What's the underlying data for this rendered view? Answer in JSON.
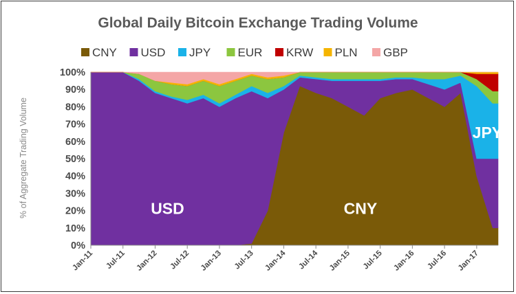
{
  "chart_data": {
    "type": "area",
    "stacked": true,
    "percent": true,
    "title": "Global Daily Bitcoin Exchange Trading Volume",
    "ylabel": "% of Aggregate Trading Volume",
    "xlabel": "",
    "ylim": [
      0,
      100
    ],
    "y_tick_labels": [
      "0%",
      "10%",
      "20%",
      "30%",
      "40%",
      "50%",
      "60%",
      "70%",
      "80%",
      "90%",
      "100%"
    ],
    "x_tick_labels": [
      "Jan-11",
      "Jul-11",
      "Jan-12",
      "Jul-12",
      "Jan-13",
      "Jul-13",
      "Jan-14",
      "Jul-14",
      "Jan-15",
      "Jul-15",
      "Jan-16",
      "Jul-16",
      "Jan-17"
    ],
    "legend_position": "top",
    "grid": false,
    "x": [
      "Jan-11",
      "Jul-11",
      "Oct-11",
      "Jan-12",
      "Apr-12",
      "Jul-12",
      "Oct-12",
      "Jan-13",
      "Apr-13",
      "Jul-13",
      "Oct-13",
      "Jan-14",
      "Apr-14",
      "Jul-14",
      "Oct-14",
      "Jan-15",
      "Apr-15",
      "Jul-15",
      "Oct-15",
      "Jan-16",
      "Apr-16",
      "Jul-16",
      "Oct-16",
      "Jan-17",
      "Apr-17"
    ],
    "series": [
      {
        "name": "CNY",
        "color": "#7a5a08",
        "values": [
          0,
          0,
          0,
          0,
          0,
          0,
          0,
          0,
          0,
          1,
          20,
          65,
          92,
          88,
          85,
          80,
          75,
          85,
          88,
          90,
          85,
          80,
          88,
          40,
          10
        ]
      },
      {
        "name": "USD",
        "color": "#7030a0",
        "values": [
          100,
          100,
          95,
          88,
          85,
          82,
          85,
          80,
          85,
          88,
          65,
          25,
          5,
          8,
          10,
          15,
          20,
          10,
          8,
          6,
          8,
          10,
          6,
          10,
          40
        ]
      },
      {
        "name": "JPY",
        "color": "#1ab2e8",
        "values": [
          0,
          0,
          1,
          1,
          1,
          2,
          2,
          2,
          2,
          3,
          3,
          2,
          1,
          1,
          1,
          1,
          1,
          1,
          1,
          1,
          3,
          6,
          4,
          42,
          32
        ]
      },
      {
        "name": "EUR",
        "color": "#8cc63f",
        "values": [
          0,
          0,
          3,
          6,
          7,
          8,
          8,
          10,
          8,
          6,
          8,
          5,
          2,
          3,
          4,
          4,
          4,
          4,
          3,
          3,
          4,
          4,
          2,
          4,
          7
        ]
      },
      {
        "name": "KRW",
        "color": "#c00000",
        "values": [
          0,
          0,
          0,
          0,
          0,
          0,
          0,
          0,
          0,
          0,
          0,
          0,
          0,
          0,
          0,
          0,
          0,
          0,
          0,
          0,
          0,
          0,
          0,
          3,
          10
        ]
      },
      {
        "name": "PLN",
        "color": "#f5b400",
        "values": [
          0,
          0,
          0,
          0,
          1,
          1,
          1,
          1,
          1,
          1,
          1,
          1,
          0,
          0,
          0,
          0,
          0,
          0,
          0,
          0,
          0,
          0,
          0,
          1,
          1
        ]
      },
      {
        "name": "GBP",
        "color": "#f4a6a6",
        "values": [
          0,
          0,
          1,
          5,
          6,
          7,
          4,
          7,
          4,
          1,
          3,
          2,
          0,
          0,
          0,
          0,
          0,
          0,
          0,
          0,
          0,
          0,
          0,
          0,
          0
        ]
      }
    ],
    "annotations": [
      {
        "text": "USD",
        "x": "Jan-12",
        "y": 18
      },
      {
        "text": "CNY",
        "x": "Jan-15",
        "y": 18
      },
      {
        "text": "JPY",
        "x": "Mar-17",
        "y": 62
      }
    ]
  }
}
